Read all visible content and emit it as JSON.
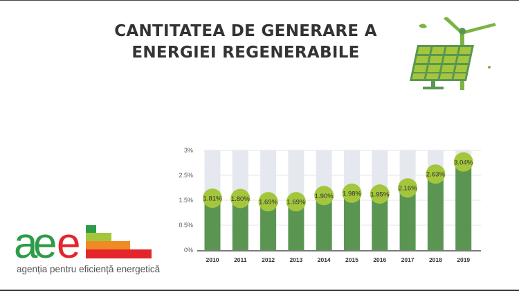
{
  "title_lines": [
    "CANTITATEA DE GENERARE A",
    "ENERGIEI REGENERABILE"
  ],
  "illustration": "solar-panel-wind-turbine-icon",
  "logo": {
    "letters": "aee",
    "tagline": "agenția pentru eficiență energetică"
  },
  "colors": {
    "bar": "#5a9652",
    "bar_background": "#e6e8ef",
    "label_circle": "#a4c63c",
    "title": "#333333"
  },
  "chart_data": {
    "type": "bar",
    "categories": [
      "2010",
      "2011",
      "2012",
      "2013",
      "2014",
      "2015",
      "2016",
      "2017",
      "2018",
      "2019"
    ],
    "values": [
      1.81,
      1.8,
      1.69,
      1.69,
      1.9,
      1.98,
      1.95,
      2.16,
      2.63,
      3.04
    ],
    "data_labels": [
      "1.81%",
      "1.80%",
      "1.69%",
      "1.69%",
      "1.90%",
      "1.98%",
      "1.95%",
      "2.16%",
      "2.63%",
      "3.04%"
    ],
    "y_tick_labels": [
      "3%",
      "2.5%",
      "1.5%",
      "0.5%",
      "0%"
    ],
    "grid": true,
    "legend": "none"
  }
}
